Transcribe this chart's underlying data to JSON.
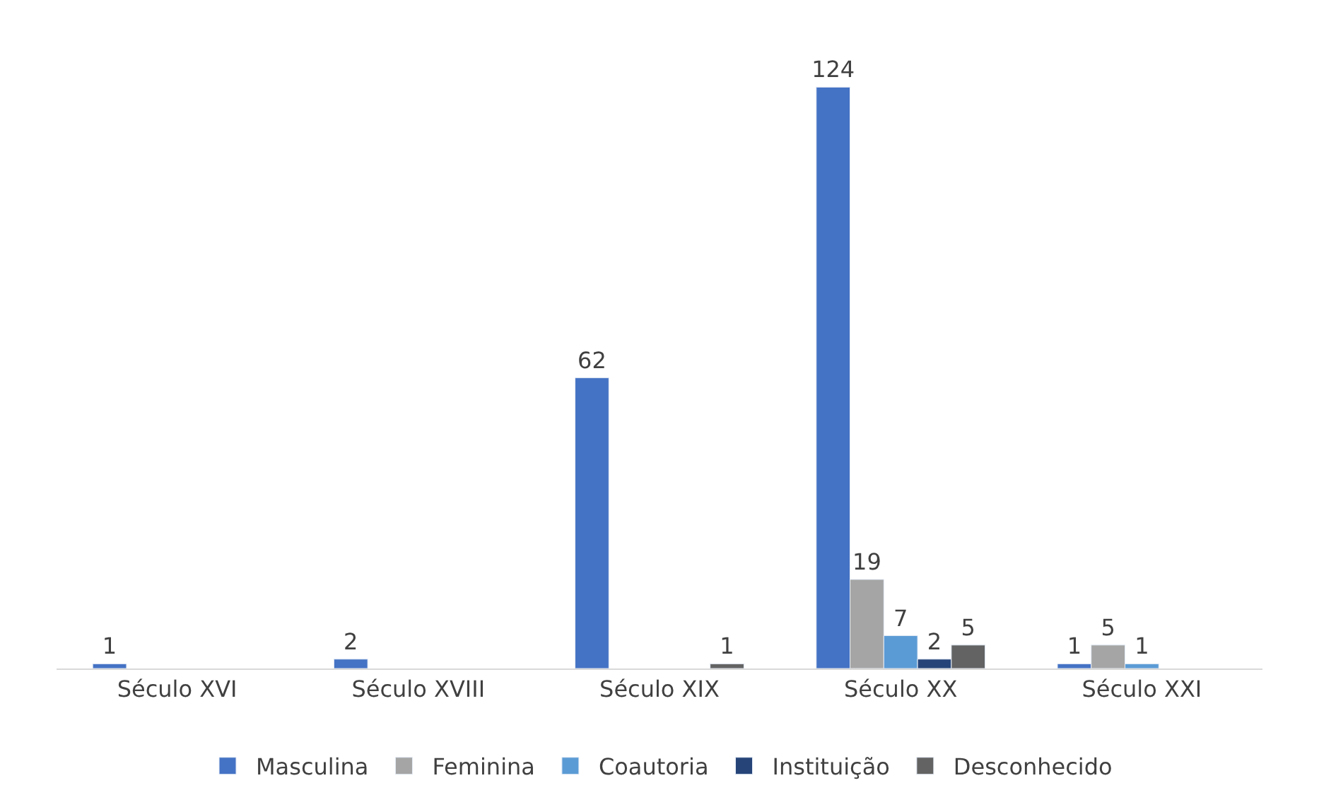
{
  "chart_data": {
    "type": "bar",
    "categories": [
      "Século XVI",
      "Século XVIII",
      "Século XIX",
      "Século XX",
      "Século XXI"
    ],
    "series": [
      {
        "name": "Masculina",
        "color": "#4472c4",
        "values": [
          1,
          2,
          62,
          124,
          1
        ]
      },
      {
        "name": "Feminina",
        "color": "#a5a5a5",
        "values": [
          null,
          null,
          null,
          19,
          5
        ]
      },
      {
        "name": "Coautoria",
        "color": "#5b9bd5",
        "values": [
          null,
          null,
          null,
          7,
          1
        ]
      },
      {
        "name": "Instituição",
        "color": "#264478",
        "values": [
          null,
          null,
          null,
          2,
          null
        ]
      },
      {
        "name": "Desconhecido",
        "color": "#636363",
        "values": [
          null,
          null,
          1,
          5,
          null
        ]
      }
    ],
    "data_labels": true,
    "legend": "bottom"
  }
}
